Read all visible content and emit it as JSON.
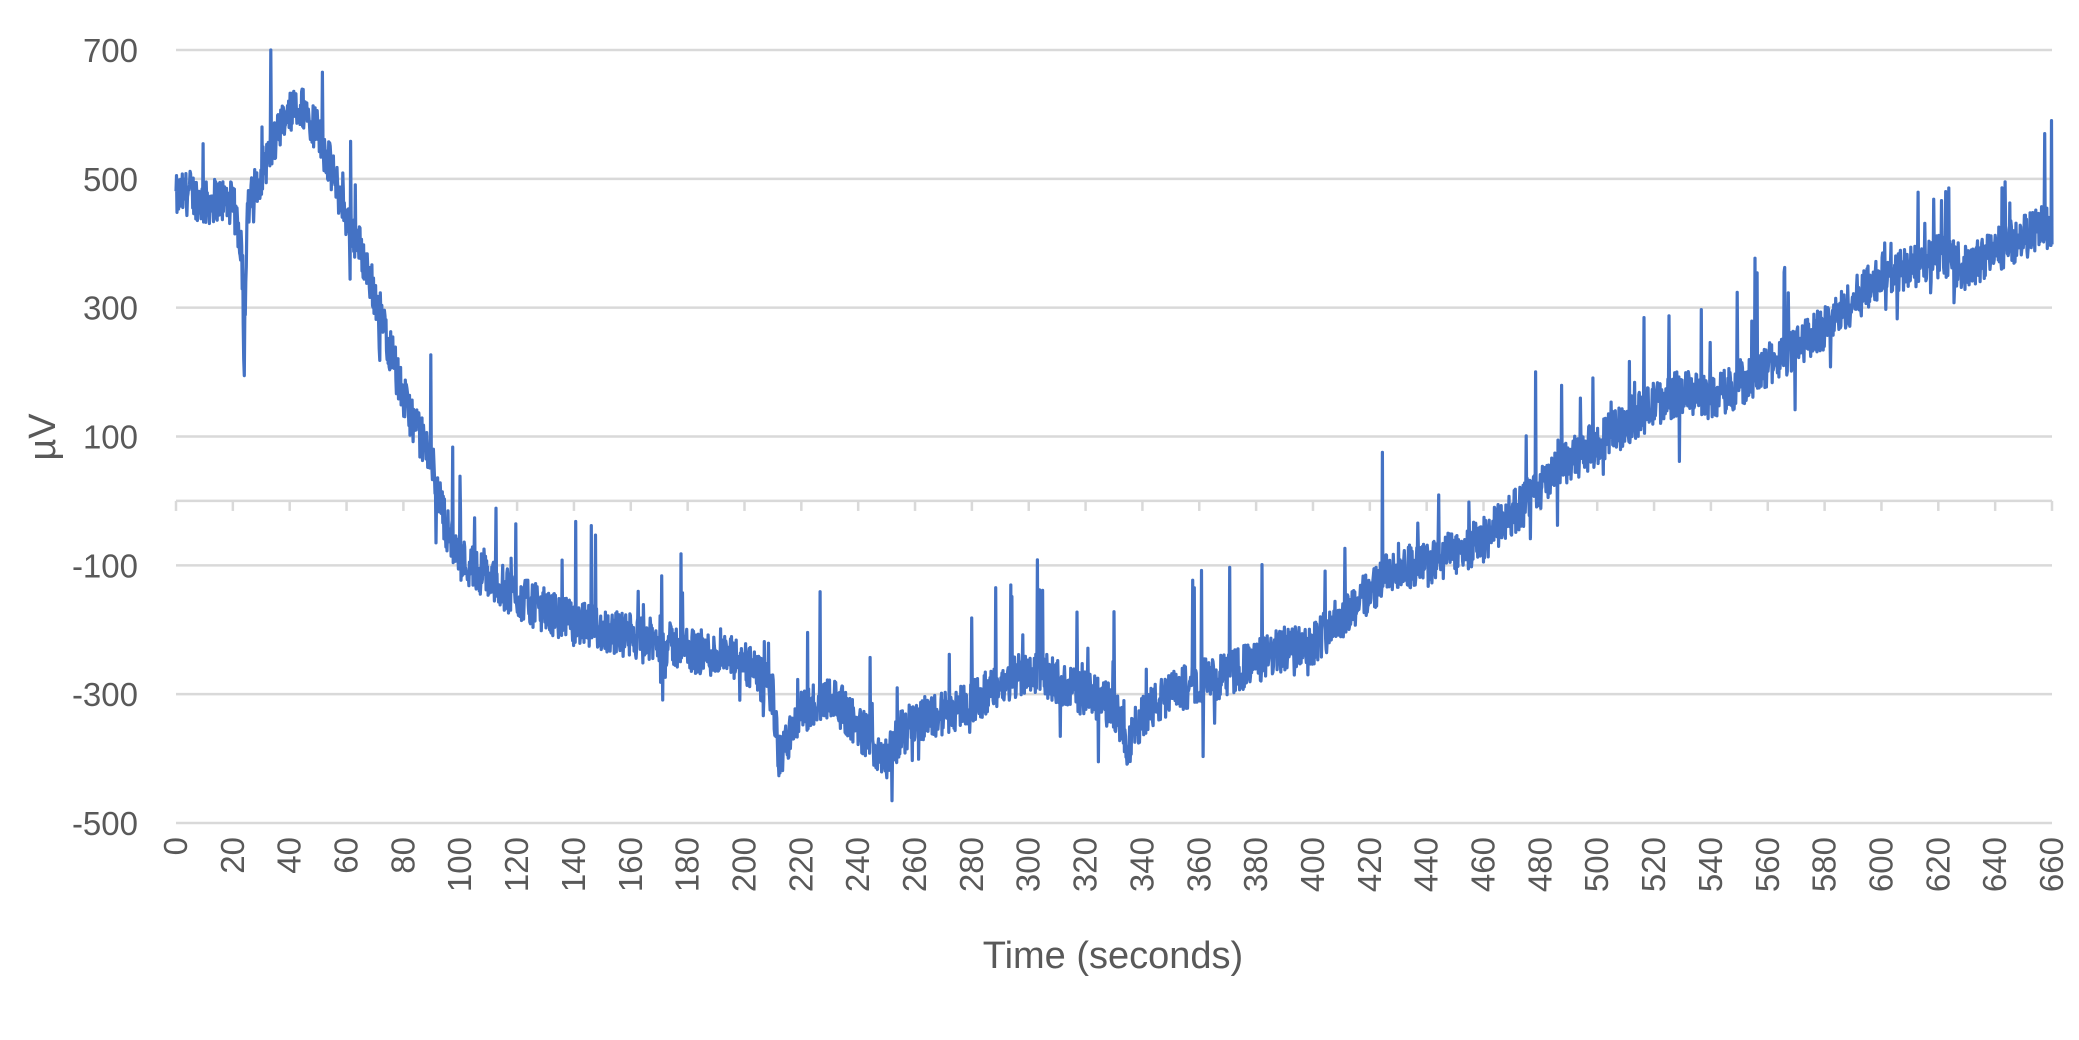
{
  "chart_data": {
    "type": "line",
    "title": "",
    "xlabel": "Time (seconds)",
    "ylabel": "µV",
    "xlim": [
      0,
      660
    ],
    "ylim": [
      -500,
      700
    ],
    "x_ticks": [
      0,
      20,
      40,
      60,
      80,
      100,
      120,
      140,
      160,
      180,
      200,
      220,
      240,
      260,
      280,
      300,
      320,
      340,
      360,
      380,
      400,
      420,
      440,
      460,
      480,
      500,
      520,
      540,
      560,
      580,
      600,
      620,
      640,
      660
    ],
    "y_ticks": [
      700,
      500,
      300,
      100,
      -100,
      -300,
      -500
    ],
    "grid": true,
    "legend": "none",
    "colors": {
      "series": "#4472c4",
      "grid": "#d9d9d9",
      "text": "#595959"
    },
    "series": [
      {
        "x": [
          0,
          5,
          10,
          15,
          20,
          23,
          24,
          25,
          30,
          35,
          40,
          45,
          50,
          55,
          60,
          65,
          70,
          75,
          80,
          85,
          90,
          95,
          100,
          110,
          120,
          130,
          140,
          150,
          160,
          170,
          180,
          190,
          200,
          210,
          212,
          220,
          230,
          240,
          250,
          255,
          260,
          270,
          280,
          290,
          300,
          310,
          320,
          330,
          335,
          340,
          350,
          360,
          370,
          380,
          390,
          400,
          410,
          420,
          430,
          440,
          450,
          460,
          470,
          480,
          490,
          500,
          510,
          520,
          530,
          540,
          550,
          560,
          570,
          580,
          590,
          600,
          610,
          620,
          630,
          640,
          650,
          660
        ],
        "y": [
          470,
          480,
          460,
          470,
          460,
          400,
          220,
          450,
          510,
          560,
          600,
          610,
          570,
          510,
          440,
          390,
          320,
          240,
          160,
          110,
          60,
          -40,
          -90,
          -120,
          -150,
          -170,
          -190,
          -200,
          -210,
          -220,
          -230,
          -240,
          -250,
          -300,
          -400,
          -330,
          -300,
          -350,
          -400,
          -360,
          -340,
          -330,
          -310,
          -290,
          -260,
          -280,
          -300,
          -320,
          -380,
          -330,
          -300,
          -280,
          -270,
          -250,
          -230,
          -220,
          -180,
          -140,
          -100,
          -100,
          -80,
          -60,
          -20,
          20,
          60,
          90,
          120,
          150,
          170,
          160,
          180,
          210,
          240,
          270,
          310,
          350,
          360,
          380,
          360,
          390,
          410,
          430
        ]
      }
    ]
  }
}
